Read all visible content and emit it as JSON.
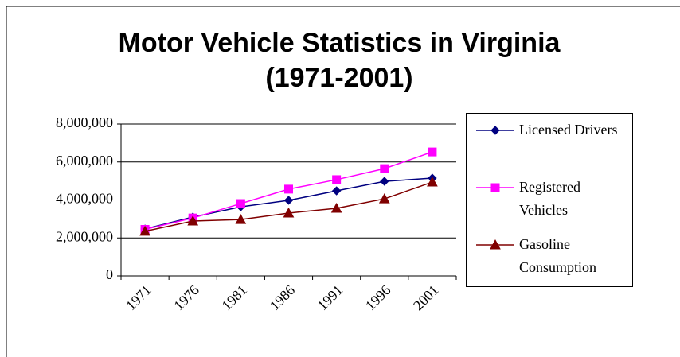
{
  "chart_data": {
    "type": "line",
    "title": "Motor Vehicle Statistics in Virginia (1971-2001)",
    "categories": [
      "1971",
      "1976",
      "1981",
      "1986",
      "1991",
      "1996",
      "2001"
    ],
    "series": [
      {
        "name": "Licensed Drivers",
        "color": "#000080",
        "marker": "diamond",
        "values": [
          2470000,
          3100000,
          3640000,
          3980000,
          4480000,
          4980000,
          5150000
        ]
      },
      {
        "name": "Registered Vehicles",
        "color": "#ff00ff",
        "marker": "square",
        "values": [
          2450000,
          3050000,
          3810000,
          4570000,
          5070000,
          5650000,
          6530000
        ]
      },
      {
        "name": "Gasoline Consumption",
        "color": "#800000",
        "marker": "triangle",
        "values": [
          2350000,
          2890000,
          2970000,
          3310000,
          3560000,
          4060000,
          4940000
        ]
      }
    ],
    "ylim": [
      0,
      8000000
    ],
    "yticks": [
      0,
      {
        "value": 2000000,
        "label": "2,000,000"
      },
      {
        "value": 4000000,
        "label": "4,000,000"
      },
      {
        "value": 6000000,
        "label": "6,000,000"
      },
      {
        "value": 8000000,
        "label": "8,000,000"
      }
    ],
    "grid": true,
    "legend": "right"
  }
}
